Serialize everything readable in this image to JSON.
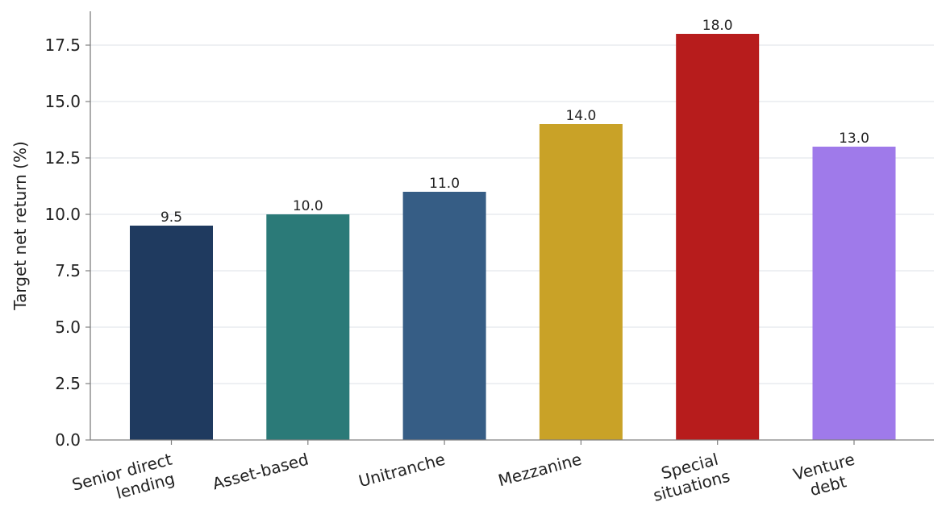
{
  "chart_data": {
    "type": "bar",
    "title": "",
    "xlabel": "",
    "ylabel": "Target net return (%)",
    "categories": [
      [
        "Senior direct",
        "lending"
      ],
      [
        "Asset-based"
      ],
      [
        "Unitranche"
      ],
      [
        "Mezzanine"
      ],
      [
        "Special",
        "situations"
      ],
      [
        "Venture",
        "debt"
      ]
    ],
    "values": [
      9.5,
      10.0,
      11.0,
      14.0,
      18.0,
      13.0
    ],
    "value_labels": [
      "9.5",
      "10.0",
      "11.0",
      "14.0",
      "18.0",
      "13.0"
    ],
    "colors": [
      "#1f3a5f",
      "#2b7a78",
      "#365d85",
      "#c9a227",
      "#b71c1c",
      "#9f7aea"
    ],
    "ylim": [
      0,
      19
    ],
    "yticks": [
      0.0,
      2.5,
      5.0,
      7.5,
      10.0,
      12.5,
      15.0,
      17.5
    ],
    "ytick_labels": [
      "0.0",
      "2.5",
      "5.0",
      "7.5",
      "10.0",
      "12.5",
      "15.0",
      "17.5"
    ],
    "grid": "horizontal",
    "legend": "none"
  }
}
